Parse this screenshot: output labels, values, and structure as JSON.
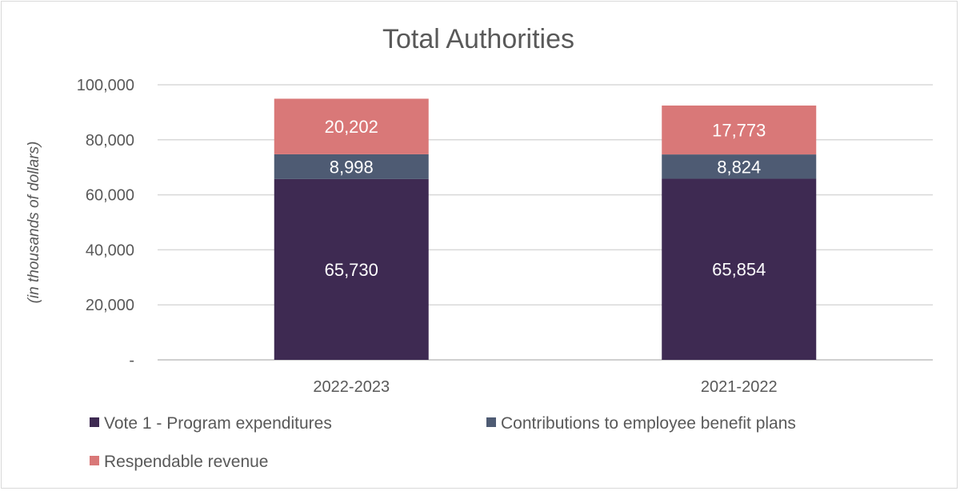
{
  "chart_data": {
    "type": "bar",
    "stacked": true,
    "title": "Total Authorities",
    "xlabel": "",
    "ylabel": "(in thousands of dollars)",
    "ylim": [
      0,
      100000
    ],
    "yticks": [
      0,
      20000,
      40000,
      60000,
      80000,
      100000
    ],
    "ytick_labels": [
      "-",
      "20,000",
      "40,000",
      "60,000",
      "80,000",
      "100,000"
    ],
    "grid": true,
    "legend_position": "bottom",
    "categories": [
      "2022-2023",
      "2021-2022"
    ],
    "series": [
      {
        "name": "Vote 1 - Program expenditures",
        "values": [
          65730,
          65854
        ],
        "labels": [
          "65,730",
          "65,854"
        ],
        "color": "#3e2a52"
      },
      {
        "name": "Contributions to employee benefit plans",
        "values": [
          8998,
          8824
        ],
        "labels": [
          "8,998",
          "8,824"
        ],
        "color": "#4e5b73"
      },
      {
        "name": "Respendable revenue",
        "values": [
          20202,
          17773
        ],
        "labels": [
          "20,202",
          "17,773"
        ],
        "color": "#d97878"
      }
    ]
  }
}
